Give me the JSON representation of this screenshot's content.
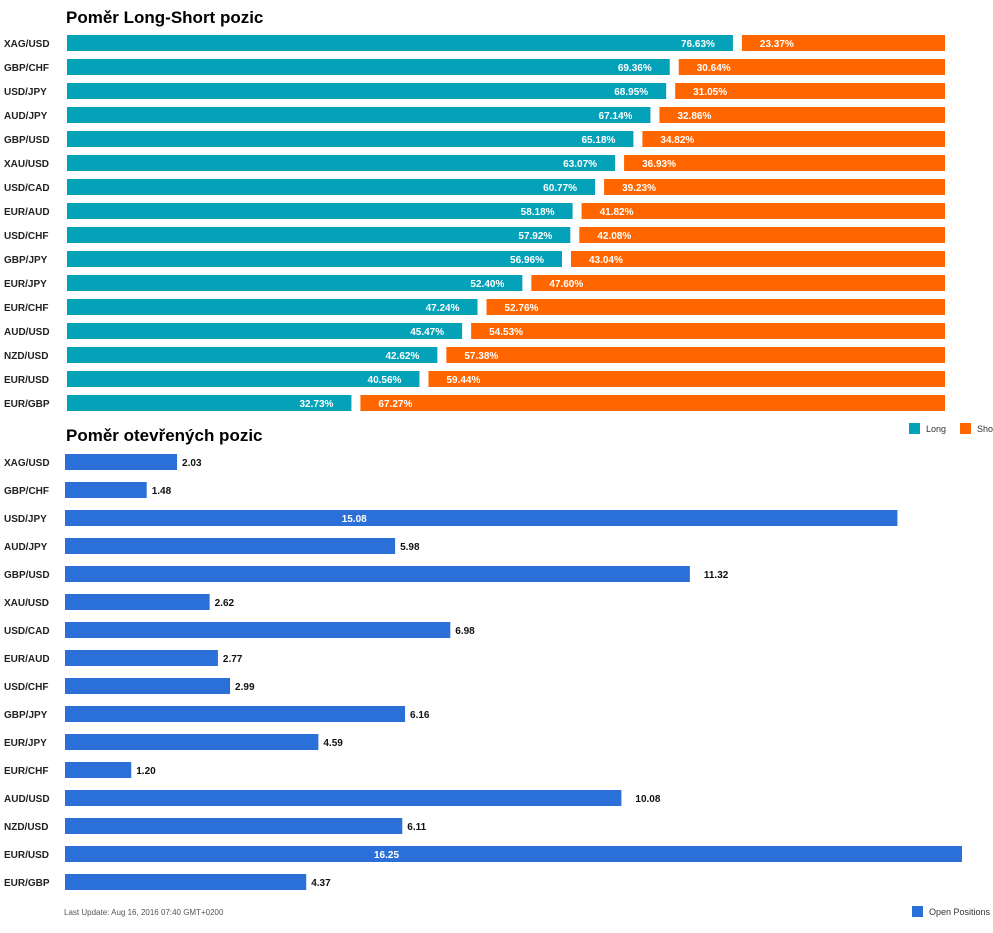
{
  "colors": {
    "long": "#04a2b8",
    "short": "#ff6600",
    "open": "#2b6fd8"
  },
  "footer": {
    "last_update": "Last Update: Aug 16, 2016 07:40 GMT+0200"
  },
  "chart_data": [
    {
      "type": "bar",
      "stacked": true,
      "orientation": "horizontal",
      "title": "Poměr Long-Short pozic",
      "categories": [
        "XAG/USD",
        "GBP/CHF",
        "USD/JPY",
        "AUD/JPY",
        "GBP/USD",
        "XAU/USD",
        "USD/CAD",
        "EUR/AUD",
        "USD/CHF",
        "GBP/JPY",
        "EUR/JPY",
        "EUR/CHF",
        "AUD/USD",
        "NZD/USD",
        "EUR/USD",
        "EUR/GBP"
      ],
      "series": [
        {
          "name": "Long",
          "values": [
            76.63,
            69.36,
            68.95,
            67.14,
            65.18,
            63.07,
            60.77,
            58.18,
            57.92,
            56.96,
            52.4,
            47.24,
            45.47,
            42.62,
            40.56,
            32.73
          ]
        },
        {
          "name": "Short",
          "values": [
            23.37,
            30.64,
            31.05,
            32.86,
            34.82,
            36.93,
            39.23,
            41.82,
            42.08,
            43.04,
            47.6,
            52.76,
            54.53,
            57.38,
            59.44,
            67.27
          ]
        }
      ],
      "legend": "bottom-right",
      "xlim": [
        0,
        100
      ]
    },
    {
      "type": "bar",
      "orientation": "horizontal",
      "title": "Poměr otevřených pozic",
      "categories": [
        "XAG/USD",
        "GBP/CHF",
        "USD/JPY",
        "AUD/JPY",
        "GBP/USD",
        "XAU/USD",
        "USD/CAD",
        "EUR/AUD",
        "USD/CHF",
        "GBP/JPY",
        "EUR/JPY",
        "EUR/CHF",
        "AUD/USD",
        "NZD/USD",
        "EUR/USD",
        "EUR/GBP"
      ],
      "series": [
        {
          "name": "Open Positions",
          "values": [
            2.03,
            1.48,
            15.08,
            5.98,
            11.32,
            2.62,
            6.98,
            2.77,
            2.99,
            6.16,
            4.59,
            1.2,
            10.08,
            6.11,
            16.25,
            4.37
          ]
        }
      ],
      "legend": "bottom-right",
      "xlim": [
        0,
        16.25
      ]
    }
  ]
}
